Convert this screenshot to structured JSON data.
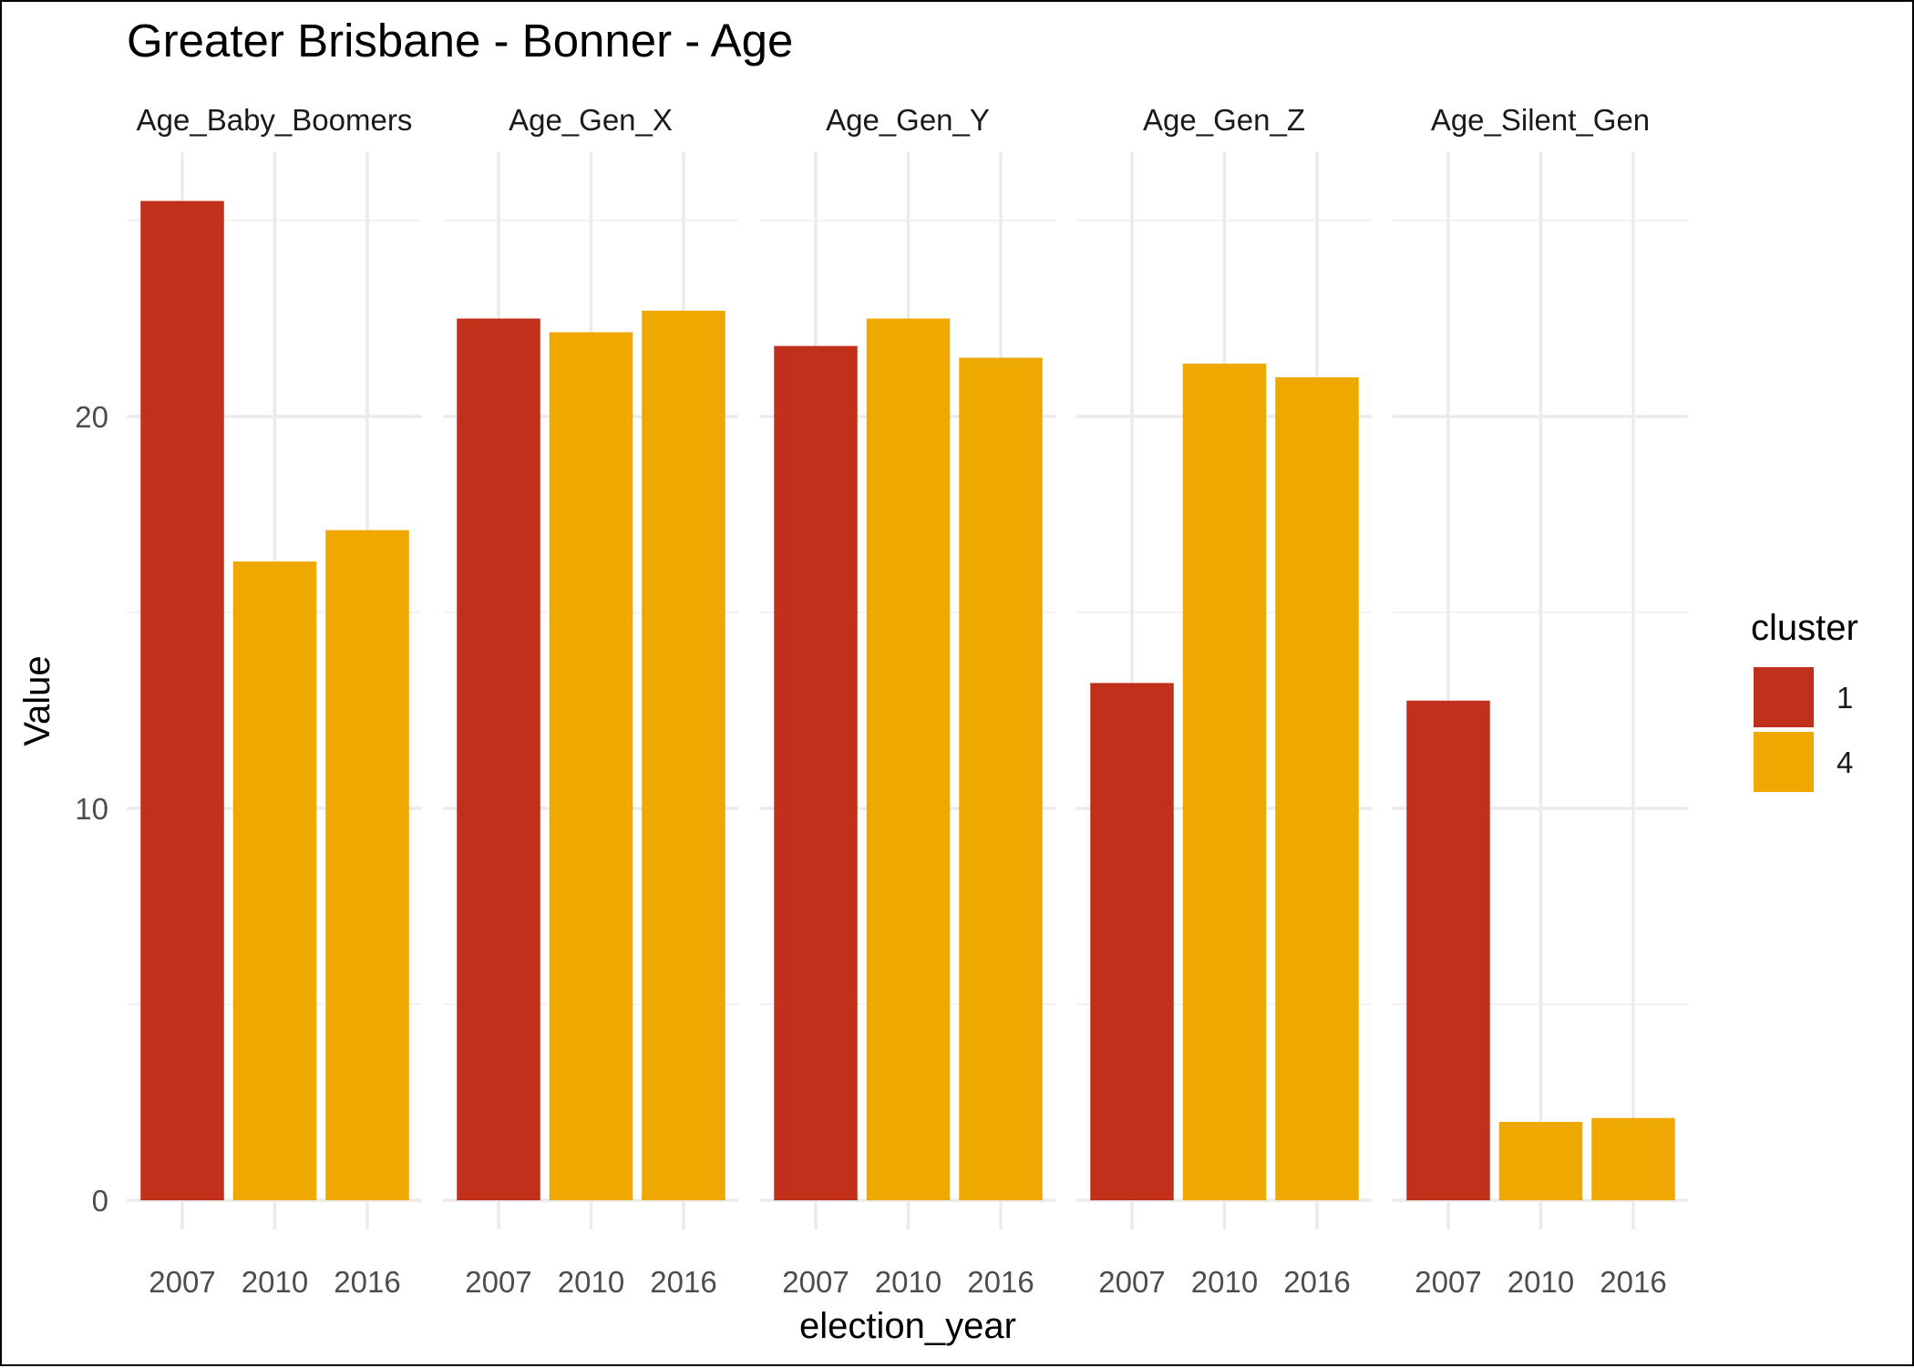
{
  "chart_data": {
    "type": "bar",
    "title": "Greater Brisbane - Bonner - Age",
    "xlabel": "election_year",
    "ylabel": "Value",
    "facets": [
      "Age_Baby_Boomers",
      "Age_Gen_X",
      "Age_Gen_Y",
      "Age_Gen_Z",
      "Age_Silent_Gen"
    ],
    "categories": [
      "2007",
      "2010",
      "2016"
    ],
    "ylim": [
      0,
      25.5
    ],
    "y_ticks": [
      0,
      10,
      20
    ],
    "y_tick_labels": [
      "0",
      "10",
      "20"
    ],
    "legend": {
      "title": "cluster",
      "position": "right",
      "items": [
        {
          "label": "1",
          "color": "#C0301A"
        },
        {
          "label": "4",
          "color": "#EFA800"
        }
      ]
    },
    "panels": [
      {
        "facet": "Age_Baby_Boomers",
        "values": [
          25.5,
          16.3,
          17.1
        ],
        "clusters": [
          "1",
          "4",
          "4"
        ]
      },
      {
        "facet": "Age_Gen_X",
        "values": [
          22.5,
          22.15,
          22.7
        ],
        "clusters": [
          "1",
          "4",
          "4"
        ]
      },
      {
        "facet": "Age_Gen_Y",
        "values": [
          21.8,
          22.5,
          21.5
        ],
        "clusters": [
          "1",
          "4",
          "4"
        ]
      },
      {
        "facet": "Age_Gen_Z",
        "values": [
          13.2,
          21.35,
          21.0
        ],
        "clusters": [
          "1",
          "4",
          "4"
        ]
      },
      {
        "facet": "Age_Silent_Gen",
        "values": [
          12.75,
          2.0,
          2.1
        ],
        "clusters": [
          "1",
          "4",
          "4"
        ]
      }
    ]
  }
}
